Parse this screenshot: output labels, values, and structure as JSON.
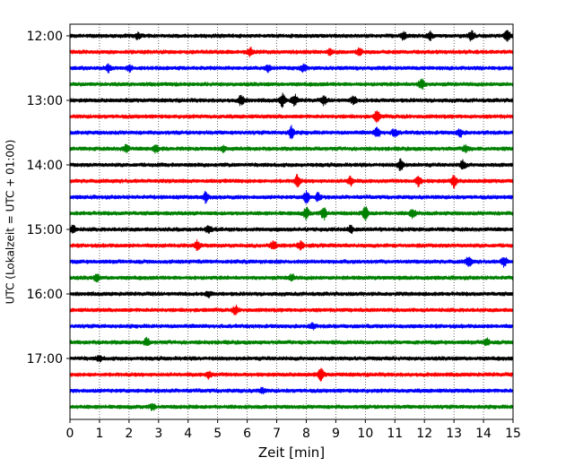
{
  "chart_data": {
    "type": "line",
    "title": "",
    "xlabel": "Zeit  [min]",
    "ylabel": "UTC (Lokalzeit = UTC + 01:00)",
    "xlim": [
      0,
      15
    ],
    "x_ticks": [
      0,
      1,
      2,
      3,
      4,
      5,
      6,
      7,
      8,
      9,
      10,
      11,
      12,
      13,
      14,
      15
    ],
    "x_tick_labels": [
      "0",
      "1",
      "2",
      "3",
      "4",
      "5",
      "6",
      "7",
      "8",
      "9",
      "10",
      "11",
      "12",
      "13",
      "14",
      "15"
    ],
    "y_tick_labels": [
      "12:00",
      "13:00",
      "14:00",
      "15:00",
      "16:00",
      "17:00"
    ],
    "grid": "vertical dotted",
    "colors": [
      "#000000",
      "#ff0000",
      "#0000ff",
      "#008000"
    ],
    "traces": [
      {
        "start": "12:00",
        "color": "#000000",
        "events": [
          [
            2.3,
            0.5
          ],
          [
            11.3,
            0.7
          ],
          [
            12.2,
            0.6
          ],
          [
            13.6,
            0.8
          ],
          [
            14.8,
            1.0
          ]
        ]
      },
      {
        "start": "12:15",
        "color": "#ff0000",
        "events": [
          [
            6.1,
            0.6
          ],
          [
            8.8,
            0.5
          ],
          [
            9.8,
            0.5
          ]
        ]
      },
      {
        "start": "12:30",
        "color": "#0000ff",
        "events": [
          [
            1.3,
            0.6
          ],
          [
            2.0,
            0.5
          ],
          [
            6.7,
            0.5
          ],
          [
            7.9,
            0.6
          ]
        ]
      },
      {
        "start": "12:45",
        "color": "#008000",
        "events": [
          [
            11.9,
            0.9
          ]
        ]
      },
      {
        "start": "13:00",
        "color": "#000000",
        "events": [
          [
            5.8,
            0.8
          ],
          [
            7.2,
            1.0
          ],
          [
            7.6,
            0.9
          ],
          [
            8.6,
            0.6
          ],
          [
            9.6,
            0.6
          ]
        ]
      },
      {
        "start": "13:15",
        "color": "#ff0000",
        "events": [
          [
            10.4,
            0.9
          ]
        ]
      },
      {
        "start": "13:30",
        "color": "#0000ff",
        "events": [
          [
            7.5,
            1.0
          ],
          [
            10.4,
            0.8
          ],
          [
            11.0,
            0.7
          ],
          [
            13.2,
            0.6
          ]
        ]
      },
      {
        "start": "13:45",
        "color": "#008000",
        "events": [
          [
            1.9,
            0.6
          ],
          [
            2.9,
            0.6
          ],
          [
            5.2,
            0.5
          ],
          [
            13.4,
            0.6
          ]
        ]
      },
      {
        "start": "14:00",
        "color": "#000000",
        "events": [
          [
            11.2,
            1.0
          ],
          [
            13.3,
            0.7
          ]
        ]
      },
      {
        "start": "14:15",
        "color": "#ff0000",
        "events": [
          [
            7.7,
            1.0
          ],
          [
            9.5,
            0.7
          ],
          [
            11.8,
            0.8
          ],
          [
            13.0,
            1.0
          ]
        ]
      },
      {
        "start": "14:30",
        "color": "#0000ff",
        "events": [
          [
            4.6,
            0.8
          ],
          [
            8.0,
            1.0
          ],
          [
            8.4,
            0.6
          ]
        ]
      },
      {
        "start": "14:45",
        "color": "#008000",
        "events": [
          [
            8.0,
            0.9
          ],
          [
            8.6,
            0.9
          ],
          [
            10.0,
            1.0
          ],
          [
            11.6,
            0.7
          ]
        ]
      },
      {
        "start": "15:00",
        "color": "#000000",
        "events": [
          [
            0.1,
            0.6
          ],
          [
            4.7,
            0.6
          ],
          [
            9.5,
            0.5
          ]
        ]
      },
      {
        "start": "15:15",
        "color": "#ff0000",
        "events": [
          [
            4.3,
            0.7
          ],
          [
            6.9,
            0.8
          ],
          [
            7.8,
            0.6
          ]
        ]
      },
      {
        "start": "15:30",
        "color": "#0000ff",
        "events": [
          [
            13.5,
            0.8
          ],
          [
            14.7,
            0.8
          ]
        ]
      },
      {
        "start": "15:45",
        "color": "#008000",
        "events": [
          [
            0.9,
            0.5
          ],
          [
            7.5,
            0.5
          ]
        ]
      },
      {
        "start": "16:00",
        "color": "#000000",
        "events": [
          [
            4.7,
            0.4
          ]
        ]
      },
      {
        "start": "16:15",
        "color": "#ff0000",
        "events": [
          [
            5.6,
            0.6
          ]
        ]
      },
      {
        "start": "16:30",
        "color": "#0000ff",
        "events": [
          [
            8.2,
            0.4
          ]
        ]
      },
      {
        "start": "16:45",
        "color": "#008000",
        "events": [
          [
            2.6,
            0.6
          ],
          [
            14.1,
            0.6
          ]
        ]
      },
      {
        "start": "17:00",
        "color": "#000000",
        "events": [
          [
            1.0,
            0.4
          ]
        ]
      },
      {
        "start": "17:15",
        "color": "#ff0000",
        "events": [
          [
            4.7,
            0.5
          ],
          [
            8.5,
            1.0
          ]
        ]
      },
      {
        "start": "17:30",
        "color": "#0000ff",
        "events": [
          [
            6.5,
            0.4
          ]
        ]
      },
      {
        "start": "17:45",
        "color": "#008000",
        "events": [
          [
            2.8,
            0.4
          ]
        ]
      }
    ]
  }
}
